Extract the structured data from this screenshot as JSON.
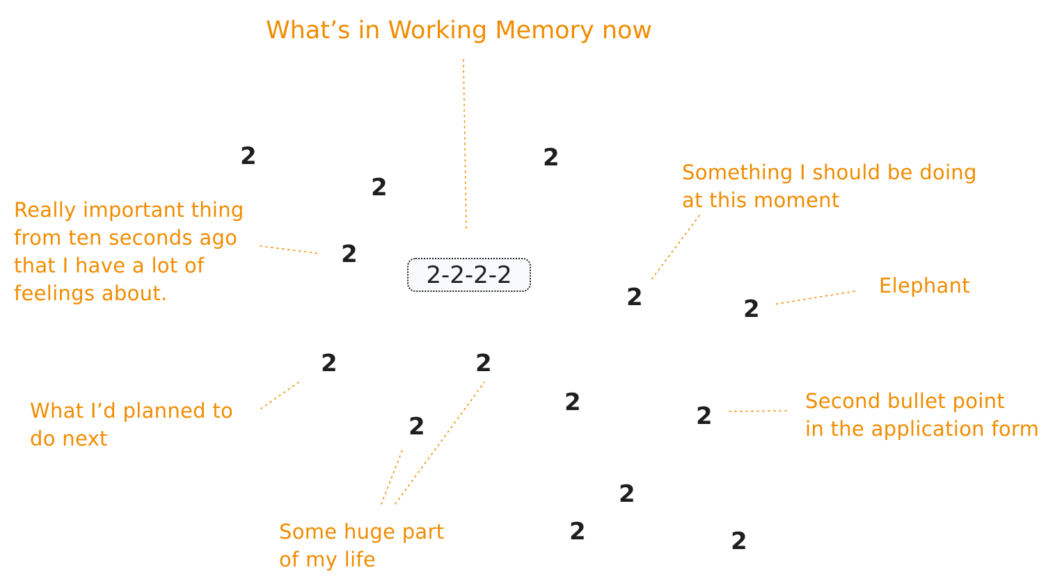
{
  "title": "What’s in Working Memory now",
  "center_sequence": "2-2-2-2",
  "digit": "2",
  "labels": {
    "important_thing": "Really important thing\nfrom ten seconds ago\nthat I have a lot of\nfeelings about.",
    "something_doing": "Something I should be doing\nat this moment",
    "elephant": "Elephant",
    "planned_next": "What I’d planned to\ndo next",
    "second_bullet": "Second bullet point\nin the application form",
    "huge_part": "Some huge part\nof my life"
  },
  "colors": {
    "annotation": "#f08c00",
    "ink": "#1e1e1e",
    "box_fill": "#f8f9fa"
  }
}
